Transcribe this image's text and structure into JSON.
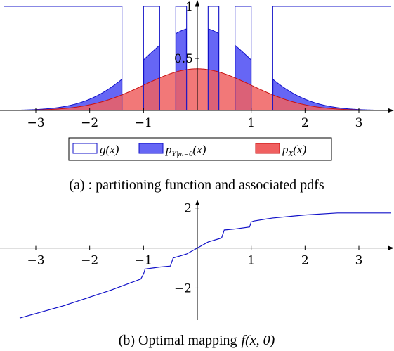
{
  "chart_data": [
    {
      "type": "area",
      "xlim": [
        -3.6,
        3.6
      ],
      "ylim": [
        0,
        1.0
      ],
      "x_ticks": [
        "−3",
        "−2",
        "−1",
        "1",
        "2",
        "3"
      ],
      "x_tick_values": [
        -3,
        -2,
        -1,
        1,
        2,
        3
      ],
      "y_ticks": [
        "0.5",
        "1"
      ],
      "y_tick_values": [
        0.5,
        1
      ],
      "grid": false,
      "legend_position": "bottom-center",
      "partition_intervals": [
        [
          -3.6,
          -1.4
        ],
        [
          -1.0,
          -0.7
        ],
        [
          -0.4,
          -0.2
        ],
        [
          0.2,
          0.4
        ],
        [
          0.7,
          1.0
        ],
        [
          1.4,
          3.6
        ]
      ],
      "series": [
        {
          "name": "g(x)",
          "kind": "indicator",
          "color": "#1010c8",
          "fill": "#ffffff"
        },
        {
          "name": "p_{Y|m=0}(x)",
          "legend_main": "p",
          "legend_sub": "Y|m=0",
          "legend_arg": "(x)",
          "kind": "conditional-pdf",
          "color": "#1010c8",
          "fill": "#6666f5",
          "peak": 0.8,
          "sigma": 1.0
        },
        {
          "name": "p_X(x)",
          "legend_main": "p",
          "legend_sub": "X",
          "legend_arg": "(x)",
          "kind": "gaussian-pdf",
          "color": "#c81010",
          "fill": "#f06060",
          "peak": 0.4,
          "sigma": 1.0
        }
      ],
      "caption": "(a) : partitioning function and associated pdfs"
    },
    {
      "type": "line",
      "xlim": [
        -3.6,
        3.6
      ],
      "ylim": [
        -3.6,
        2.2
      ],
      "x_ticks": [
        "−3",
        "−2",
        "−1",
        "1",
        "2",
        "3"
      ],
      "x_tick_values": [
        -3,
        -2,
        -1,
        1,
        2,
        3
      ],
      "y_ticks": [
        "2",
        "−2"
      ],
      "y_tick_values": [
        2,
        -2
      ],
      "grid": false,
      "color": "#1010c8",
      "series": [
        {
          "x": [
            -3.3,
            -2.5,
            -1.6,
            -1.05,
            -1.0,
            -0.97,
            -0.7,
            -0.5,
            -0.45,
            -0.2,
            0.0,
            0.2,
            0.45,
            0.5,
            0.7,
            0.97,
            1.0,
            1.05,
            1.4,
            2.0,
            2.6,
            3.6
          ],
          "y": [
            -3.5,
            -2.9,
            -2.1,
            -1.55,
            -1.3,
            -1.05,
            -0.95,
            -0.9,
            -0.5,
            -0.3,
            0.0,
            0.3,
            0.5,
            0.9,
            0.95,
            1.05,
            1.3,
            1.35,
            1.5,
            1.65,
            1.75,
            1.75
          ]
        }
      ],
      "caption_text": "(b) Optimal mapping",
      "caption_math": "f(x, 0)"
    }
  ]
}
